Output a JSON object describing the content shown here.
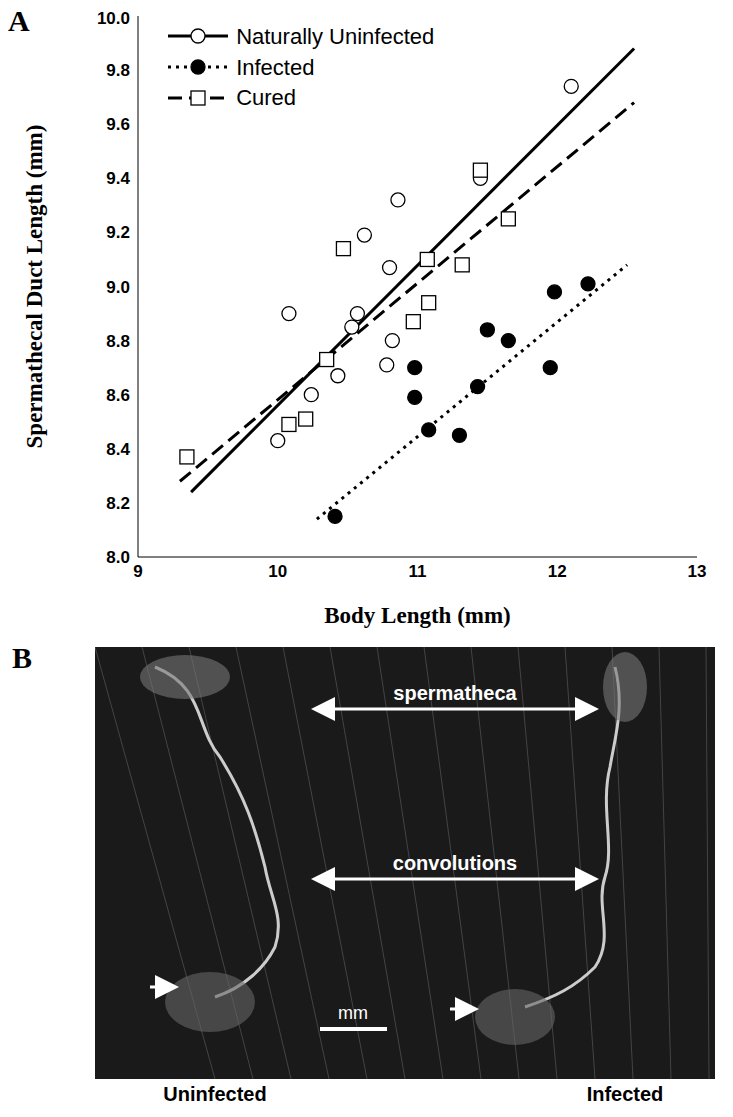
{
  "chart_data": {
    "type": "scatter",
    "panel_label": "A",
    "x_label": "Body Length (mm)",
    "y_label": "Spermathecal Duct Length (mm)",
    "xlim": [
      9,
      13
    ],
    "xticks": [
      9,
      10,
      11,
      12,
      13
    ],
    "ylim": [
      8,
      10
    ],
    "yticks": [
      {
        "value": 8,
        "label": "8.0"
      },
      {
        "value": 8.2,
        "label": "8.2"
      },
      {
        "value": 8.4,
        "label": "8.4"
      },
      {
        "value": 8.6,
        "label": "8.6"
      },
      {
        "value": 8.8,
        "label": "8.8"
      },
      {
        "value": 9,
        "label": "9.0"
      },
      {
        "value": 9.2,
        "label": "9.2"
      },
      {
        "value": 9.4,
        "label": "9.4"
      },
      {
        "value": 9.6,
        "label": "9.6"
      },
      {
        "value": 9.8,
        "label": "9.8"
      },
      {
        "value": 10,
        "label": "10.0"
      }
    ],
    "grid": false,
    "legend": "upper left",
    "series": [
      {
        "name": "Naturally Uninfected",
        "color": "#000000",
        "marker": "open_circle",
        "line_style": "solid",
        "x": [
          10.0,
          10.08,
          10.24,
          10.43,
          10.53,
          10.57,
          10.62,
          10.78,
          10.8,
          10.82,
          10.86,
          11.45,
          12.1
        ],
        "values": [
          8.43,
          8.9,
          8.6,
          8.67,
          8.85,
          8.9,
          9.19,
          8.71,
          9.07,
          8.8,
          9.32,
          9.4,
          9.74
        ],
        "fit": {
          "x": [
            9.38,
            12.55
          ],
          "values": [
            8.24,
            9.88
          ]
        }
      },
      {
        "name": "Infected",
        "color": "#000000",
        "marker": "filled_circle",
        "line_style": "dotted",
        "x": [
          10.41,
          10.98,
          10.98,
          11.08,
          11.3,
          11.43,
          11.5,
          11.65,
          11.95,
          11.98,
          12.22
        ],
        "values": [
          8.15,
          8.7,
          8.59,
          8.47,
          8.45,
          8.63,
          8.84,
          8.8,
          8.7,
          8.98,
          9.01
        ],
        "fit": {
          "x": [
            10.28,
            12.5
          ],
          "values": [
            8.14,
            9.08
          ]
        }
      },
      {
        "name": "Cured",
        "color": "#000000",
        "marker": "open_square",
        "line_style": "dashed",
        "x": [
          9.35,
          10.08,
          10.2,
          10.35,
          10.47,
          10.97,
          11.07,
          11.08,
          11.32,
          11.45,
          11.65
        ],
        "values": [
          8.37,
          8.49,
          8.51,
          8.73,
          9.14,
          8.87,
          9.1,
          8.94,
          9.08,
          9.43,
          9.25
        ],
        "fit": {
          "x": [
            9.3,
            12.55
          ],
          "values": [
            8.28,
            9.68
          ]
        }
      }
    ]
  },
  "photo": {
    "panel_label": "B",
    "annotations": [
      "spermatheca",
      "convolutions"
    ],
    "scale_bar": "mm",
    "captions": [
      "Uninfected",
      "Infected"
    ]
  }
}
